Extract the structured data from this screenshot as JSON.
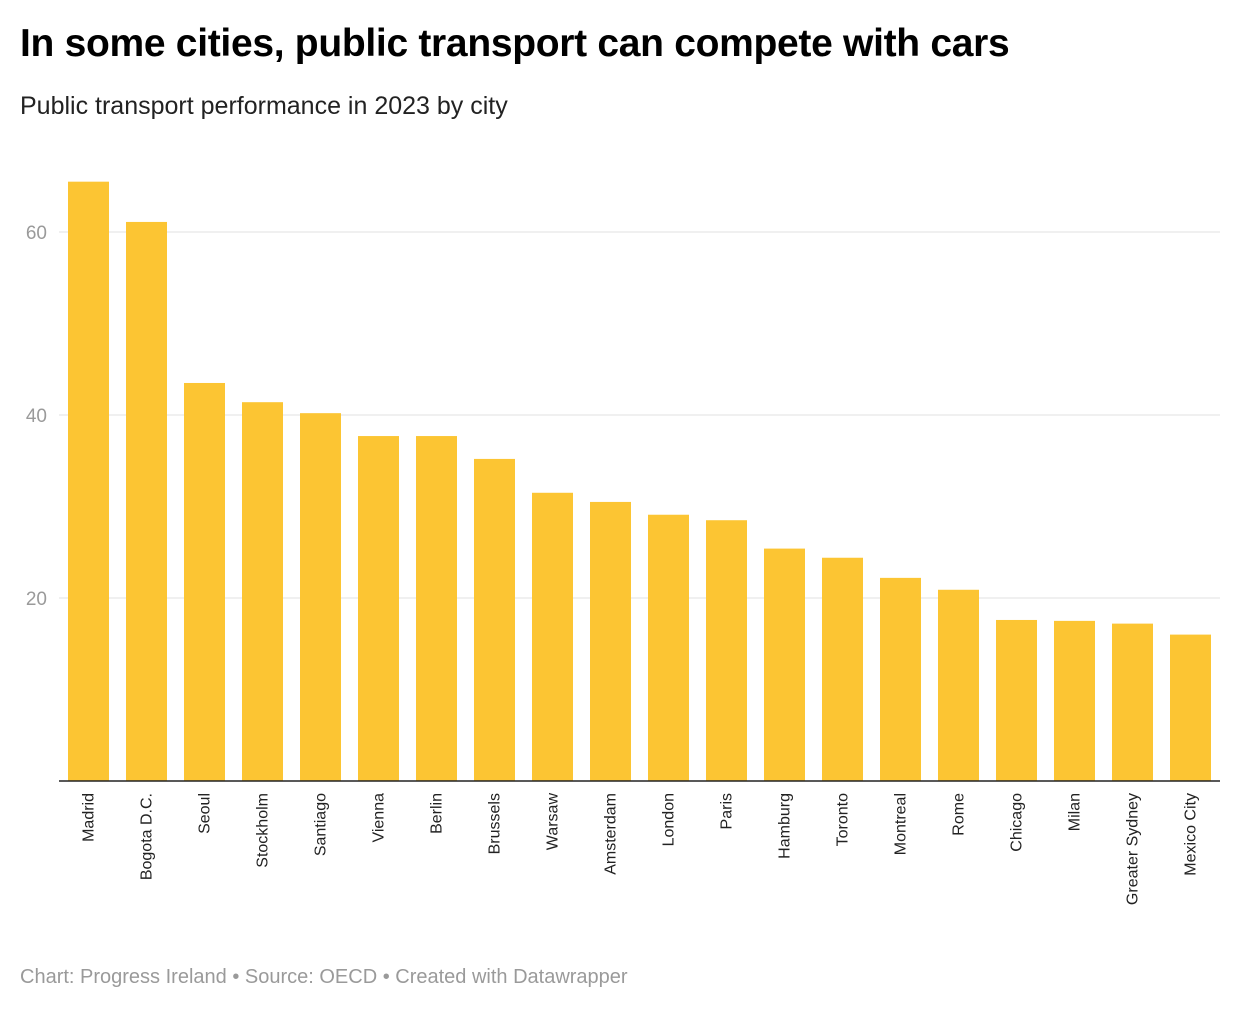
{
  "title": "In some cities, public transport can compete with cars",
  "subtitle": "Public transport performance in 2023 by city",
  "footer": "Chart: Progress Ireland • Source: OECD • Created with Datawrapper",
  "colors": {
    "bar": "#fcc533",
    "grid": "#e0e0e0",
    "axis": "#222222"
  },
  "chart_data": {
    "type": "bar",
    "title": "In some cities, public transport can compete with cars",
    "subtitle": "Public transport performance in 2023 by city",
    "xlabel": "",
    "ylabel": "",
    "ylim": [
      0,
      66
    ],
    "yticks": [
      20,
      40,
      60
    ],
    "grid": true,
    "categories": [
      "Madrid",
      "Bogota D.C.",
      "Seoul",
      "Stockholm",
      "Santiago",
      "Vienna",
      "Berlin",
      "Brussels",
      "Warsaw",
      "Amsterdam",
      "London",
      "Paris",
      "Hamburg",
      "Toronto",
      "Montreal",
      "Rome",
      "Chicago",
      "Milan",
      "Greater Sydney",
      "Mexico City"
    ],
    "values": [
      65.5,
      61.1,
      43.5,
      41.4,
      40.2,
      37.7,
      37.7,
      35.2,
      31.5,
      30.5,
      29.1,
      28.5,
      25.4,
      24.4,
      22.2,
      20.9,
      17.6,
      17.5,
      17.2,
      16.0
    ]
  }
}
